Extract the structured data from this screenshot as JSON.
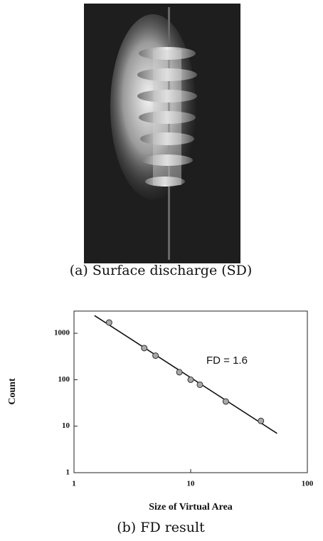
{
  "panel_a_caption": "(a) Surface discharge (SD)",
  "panel_b_caption": "(b) FD result",
  "chart_data": {
    "type": "scatter",
    "x_label": "Size of Virtual Area",
    "y_label": "Count",
    "annotation": "FD = 1.6",
    "xscale": "log",
    "yscale": "log",
    "xlim": [
      1,
      100
    ],
    "ylim": [
      1,
      3000
    ],
    "xticks": [
      1,
      10,
      100
    ],
    "yticks": [
      1,
      10,
      100,
      1000
    ],
    "points": {
      "color": "#a8a8a8",
      "x": [
        2,
        4,
        5,
        8,
        10,
        12,
        20,
        40
      ],
      "values": [
        1700,
        480,
        330,
        145,
        100,
        78,
        34,
        13
      ]
    },
    "fit": {
      "color": "#111111",
      "x": [
        1.5,
        55
      ],
      "values": [
        2400,
        7
      ]
    }
  }
}
